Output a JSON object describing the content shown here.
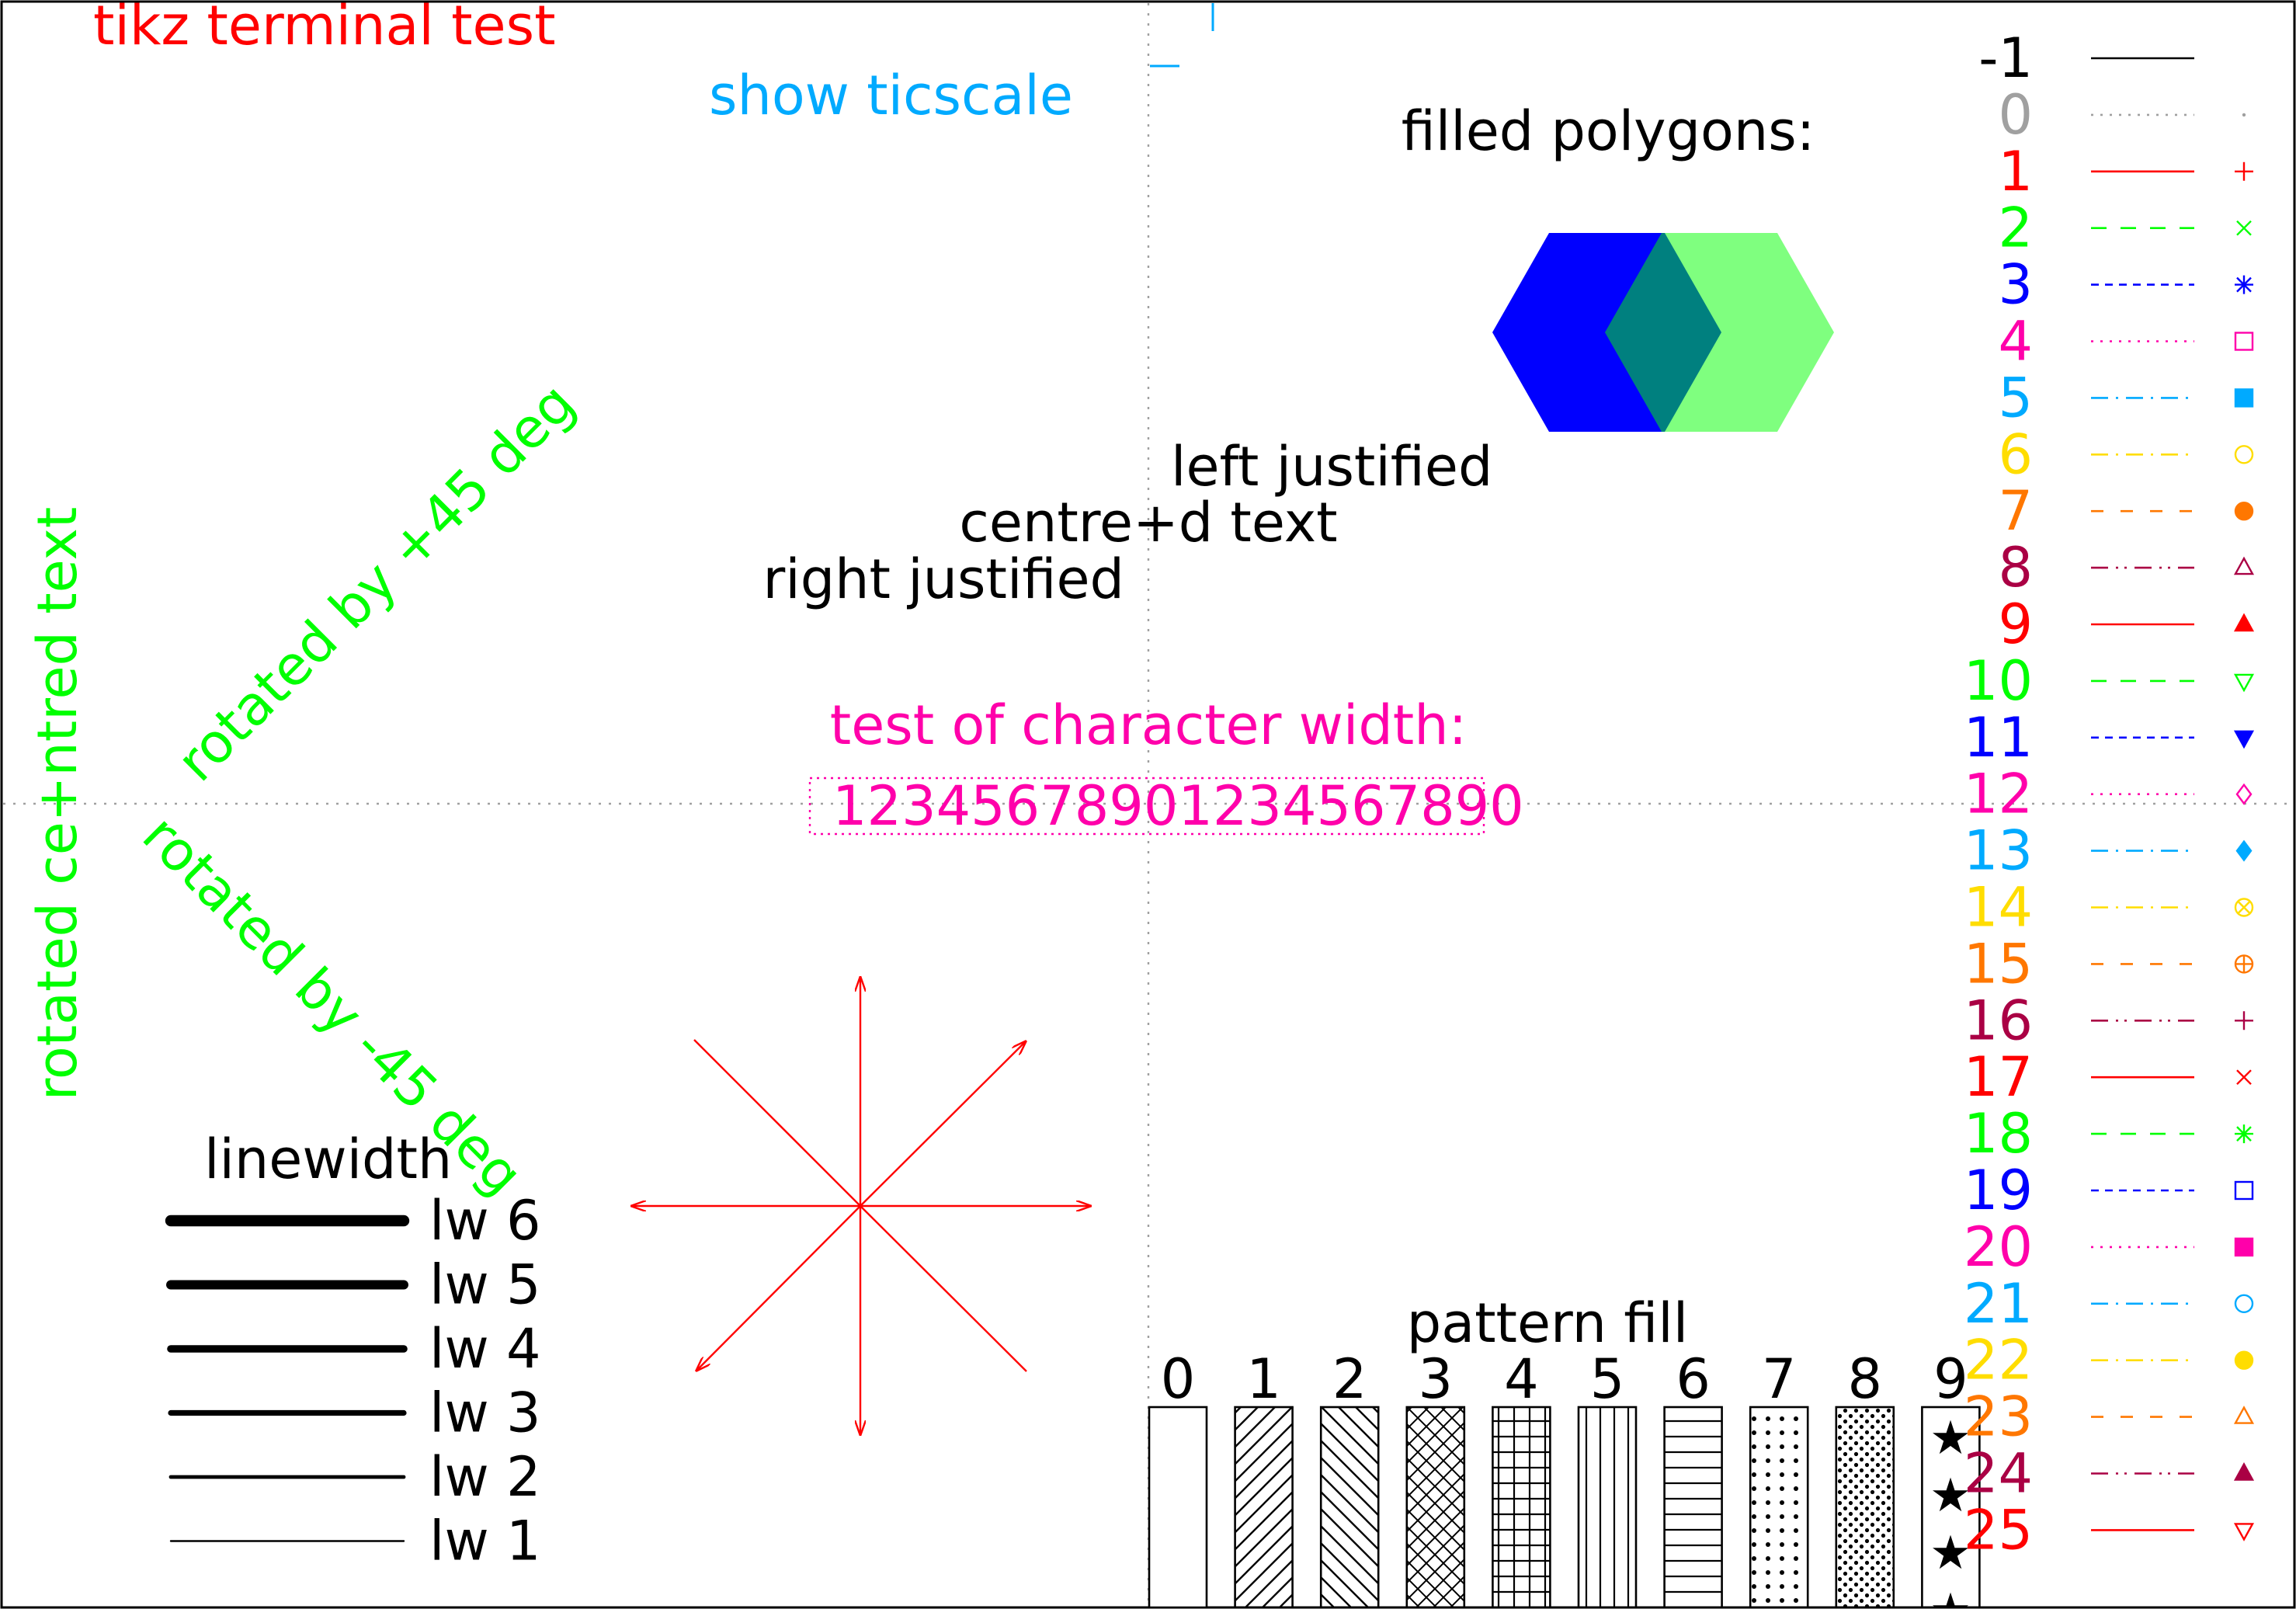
{
  "title": "tikz terminal test",
  "ticscale_label": "show ticscale",
  "polygons": {
    "label": "filled polygons:",
    "colors": [
      "#0000ff",
      "#00ff00"
    ]
  },
  "justification": {
    "left": "left justified",
    "centre": "centre+d text",
    "right": "right justified"
  },
  "char_width": {
    "label": "test of character width:",
    "digits": "12345678901234567890"
  },
  "rotated": {
    "vertical": "rotated ce+ntred text",
    "plus45": "rotated by +45 deg",
    "minus45": "rotated by -45 deg"
  },
  "linewidth": {
    "label": "linewidth",
    "items": [
      {
        "label": "lw 6",
        "width": 6
      },
      {
        "label": "lw 5",
        "width": 5
      },
      {
        "label": "lw 4",
        "width": 4
      },
      {
        "label": "lw 3",
        "width": 3
      },
      {
        "label": "lw 2",
        "width": 2
      },
      {
        "label": "lw 1",
        "width": 1
      }
    ]
  },
  "pattern_fill": {
    "label": "pattern fill",
    "patterns": [
      "0",
      "1",
      "2",
      "3",
      "4",
      "5",
      "6",
      "7",
      "8",
      "9"
    ]
  },
  "linetypes": [
    {
      "label": "-1",
      "color": "#000000",
      "dash": "solid",
      "point": "none"
    },
    {
      "label": "0",
      "color": "#a0a0a0",
      "dash": "dotted",
      "point": "dot"
    },
    {
      "label": "1",
      "color": "#ff0000",
      "dash": "solid",
      "point": "plus"
    },
    {
      "label": "2",
      "color": "#00ff00",
      "dash": "dash",
      "point": "cross"
    },
    {
      "label": "3",
      "color": "#0000ff",
      "dash": "shortdash",
      "point": "star"
    },
    {
      "label": "4",
      "color": "#ff00aa",
      "dash": "dotted",
      "point": "box"
    },
    {
      "label": "5",
      "color": "#00aaff",
      "dash": "dashdot",
      "point": "fbox"
    },
    {
      "label": "6",
      "color": "#ffdd00",
      "dash": "dashdot",
      "point": "circle"
    },
    {
      "label": "7",
      "color": "#ff7700",
      "dash": "longdash",
      "point": "fcircle"
    },
    {
      "label": "8",
      "color": "#aa0044",
      "dash": "dashdotdot",
      "point": "tri"
    },
    {
      "label": "9",
      "color": "#ff0000",
      "dash": "solid",
      "point": "ftri"
    },
    {
      "label": "10",
      "color": "#00ff00",
      "dash": "dash",
      "point": "itri"
    },
    {
      "label": "11",
      "color": "#0000ff",
      "dash": "shortdash",
      "point": "fitri"
    },
    {
      "label": "12",
      "color": "#ff00aa",
      "dash": "dotted",
      "point": "diamond"
    },
    {
      "label": "13",
      "color": "#00aaff",
      "dash": "dashdot",
      "point": "fdiamond"
    },
    {
      "label": "14",
      "color": "#ffdd00",
      "dash": "dashdot",
      "point": "otimes"
    },
    {
      "label": "15",
      "color": "#ff7700",
      "dash": "longdash",
      "point": "oplus"
    },
    {
      "label": "16",
      "color": "#aa0044",
      "dash": "dashdotdot",
      "point": "plus"
    },
    {
      "label": "17",
      "color": "#ff0000",
      "dash": "solid",
      "point": "cross"
    },
    {
      "label": "18",
      "color": "#00ff00",
      "dash": "dash",
      "point": "star"
    },
    {
      "label": "19",
      "color": "#0000ff",
      "dash": "shortdash",
      "point": "box"
    },
    {
      "label": "20",
      "color": "#ff00aa",
      "dash": "dotted",
      "point": "fbox"
    },
    {
      "label": "21",
      "color": "#00aaff",
      "dash": "dashdot",
      "point": "circle"
    },
    {
      "label": "22",
      "color": "#ffdd00",
      "dash": "dashdot",
      "point": "fcircle"
    },
    {
      "label": "23",
      "color": "#ff7700",
      "dash": "longdash",
      "point": "tri"
    },
    {
      "label": "24",
      "color": "#aa0044",
      "dash": "dashdotdot",
      "point": "ftri"
    },
    {
      "label": "25",
      "color": "#ff0000",
      "dash": "solid",
      "point": "itri"
    }
  ],
  "colors": {
    "title": "#ff0000",
    "ticscale": "#00aaff",
    "rotated": "#00ff00",
    "charwidth": "#ff00aa",
    "arrows": "#ff0000",
    "grid": "#a0a0a0"
  }
}
